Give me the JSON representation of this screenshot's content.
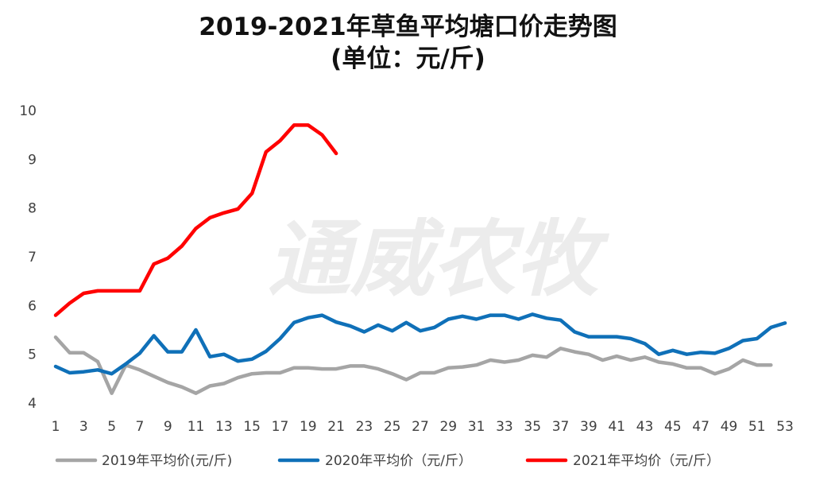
{
  "chart_data": {
    "type": "line",
    "title": "2019-2021年草鱼平均塘口价走势图",
    "subtitle": "(单位：元/斤)",
    "watermark": "通威农牧",
    "xlabel": "",
    "ylabel": "",
    "ylim": [
      4,
      10
    ],
    "yticks": [
      4,
      5,
      6,
      7,
      8,
      9,
      10
    ],
    "xlim": [
      1,
      53
    ],
    "xticks": [
      1,
      3,
      5,
      7,
      9,
      11,
      13,
      15,
      17,
      19,
      21,
      23,
      25,
      27,
      29,
      31,
      33,
      35,
      37,
      39,
      41,
      43,
      45,
      47,
      49,
      51,
      53
    ],
    "grid": false,
    "legend": "bottom",
    "series": [
      {
        "name": "2019年平均价(元/斤)",
        "color": "#a5a5a5",
        "x": [
          1,
          2,
          3,
          4,
          5,
          6,
          7,
          8,
          9,
          10,
          11,
          12,
          13,
          14,
          15,
          16,
          17,
          18,
          19,
          20,
          21,
          22,
          23,
          24,
          25,
          26,
          27,
          28,
          29,
          30,
          31,
          32,
          33,
          34,
          35,
          36,
          37,
          38,
          39,
          40,
          41,
          42,
          43,
          44,
          45,
          46,
          47,
          48,
          49,
          50,
          51,
          52
        ],
        "values": [
          5.35,
          5.03,
          5.03,
          4.85,
          4.2,
          4.78,
          4.68,
          4.55,
          4.42,
          4.33,
          4.2,
          4.35,
          4.4,
          4.52,
          4.6,
          4.62,
          4.62,
          4.72,
          4.72,
          4.7,
          4.7,
          4.76,
          4.76,
          4.7,
          4.6,
          4.48,
          4.62,
          4.62,
          4.72,
          4.74,
          4.78,
          4.88,
          4.84,
          4.88,
          4.98,
          4.94,
          5.12,
          5.05,
          5.0,
          4.88,
          4.96,
          4.88,
          4.94,
          4.84,
          4.8,
          4.72,
          4.72,
          4.6,
          4.7,
          4.88,
          4.78,
          4.78
        ]
      },
      {
        "name": "2020年平均价（元/斤）",
        "color": "#0f70b8",
        "x": [
          1,
          2,
          3,
          4,
          5,
          6,
          7,
          8,
          9,
          10,
          11,
          12,
          13,
          14,
          15,
          16,
          17,
          18,
          19,
          20,
          21,
          22,
          23,
          24,
          25,
          26,
          27,
          28,
          29,
          30,
          31,
          32,
          33,
          34,
          35,
          36,
          37,
          38,
          39,
          40,
          41,
          42,
          43,
          44,
          45,
          46,
          47,
          48,
          49,
          50,
          51,
          52,
          53
        ],
        "values": [
          4.75,
          4.62,
          4.64,
          4.68,
          4.6,
          4.8,
          5.02,
          5.38,
          5.05,
          5.05,
          5.5,
          4.95,
          5.0,
          4.86,
          4.9,
          5.06,
          5.32,
          5.65,
          5.75,
          5.8,
          5.66,
          5.58,
          5.46,
          5.6,
          5.48,
          5.65,
          5.48,
          5.55,
          5.72,
          5.78,
          5.72,
          5.8,
          5.8,
          5.72,
          5.82,
          5.74,
          5.7,
          5.46,
          5.36,
          5.36,
          5.36,
          5.32,
          5.22,
          5.0,
          5.08,
          5.0,
          5.04,
          5.02,
          5.12,
          5.28,
          5.32,
          5.55,
          5.64
        ]
      },
      {
        "name": "2021年平均价（元/斤）",
        "color": "#ff0000",
        "x": [
          1,
          2,
          3,
          4,
          5,
          6,
          7,
          8,
          9,
          10,
          11,
          12,
          13,
          14,
          15,
          16,
          17,
          18,
          19,
          20,
          21
        ],
        "values": [
          5.8,
          6.05,
          6.25,
          6.3,
          6.3,
          6.3,
          6.3,
          6.85,
          6.97,
          7.22,
          7.58,
          7.8,
          7.9,
          7.98,
          8.3,
          9.15,
          9.38,
          9.7,
          9.7,
          9.5,
          9.12
        ]
      }
    ]
  }
}
